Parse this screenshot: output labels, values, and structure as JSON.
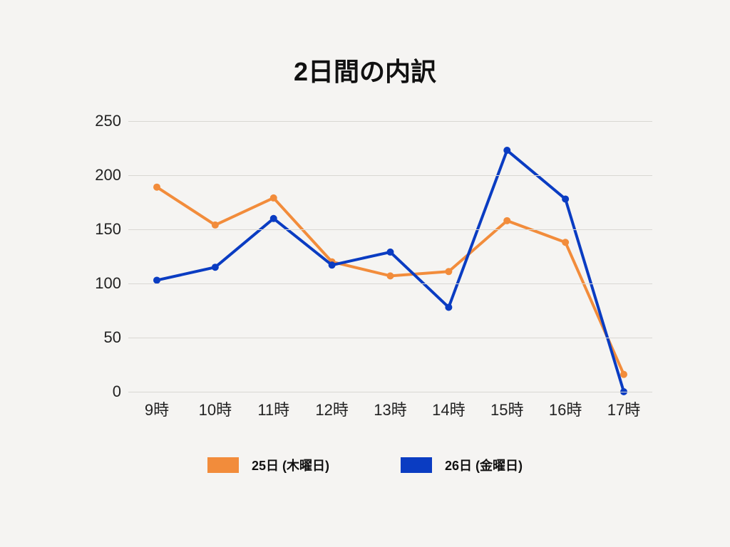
{
  "chart": {
    "type": "line",
    "title": "2日間の内訳",
    "title_fontsize": 36,
    "title_fontweight": 700,
    "background_color": "#f5f4f2",
    "grid_color": "#d9d7d3",
    "text_color": "#222222",
    "ylim": [
      0,
      250
    ],
    "ytick_step": 50,
    "yticks": [
      0,
      50,
      100,
      150,
      200,
      250
    ],
    "xticks": [
      "9時",
      "10時",
      "11時",
      "12時",
      "13時",
      "14時",
      "15時",
      "16時",
      "17時"
    ],
    "axis_fontsize": 22,
    "line_width": 4,
    "marker_radius": 5,
    "marker_style": "circle",
    "series": [
      {
        "name": "25日 (木曜日)",
        "color": "#f28c3b",
        "values": [
          189,
          154,
          179,
          120,
          107,
          111,
          158,
          138,
          16
        ]
      },
      {
        "name": "26日 (金曜日)",
        "color": "#0a3cc2",
        "values": [
          103,
          115,
          160,
          117,
          129,
          78,
          223,
          178,
          0
        ]
      }
    ],
    "legend": {
      "fontsize": 18,
      "fontweight": 700,
      "swatch_width": 44,
      "swatch_height": 22
    }
  }
}
